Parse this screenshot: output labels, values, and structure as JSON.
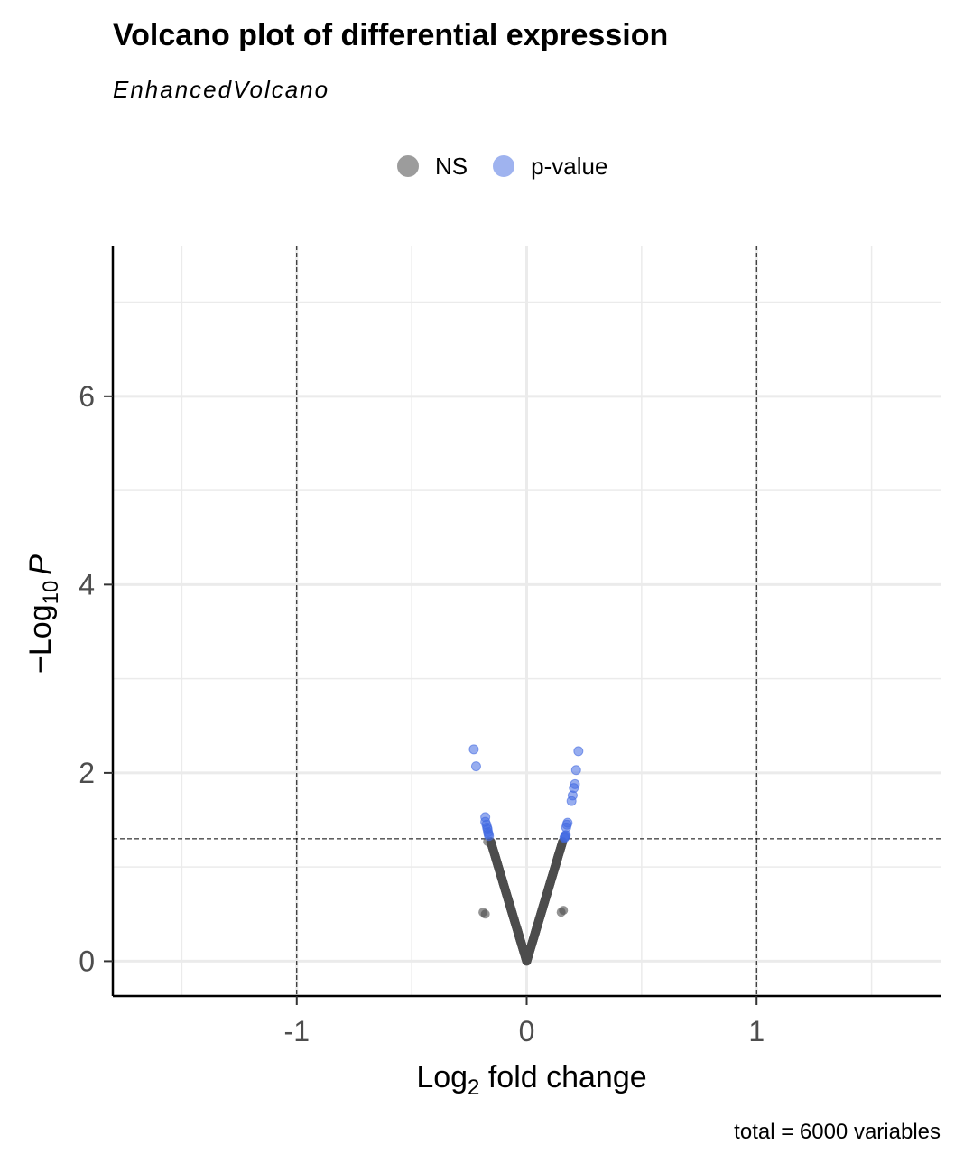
{
  "title": "Volcano plot of differential expression",
  "subtitle": "EnhancedVolcano",
  "caption": "total = 6000 variables",
  "legend": [
    {
      "label": "NS",
      "color": "#4d4d4d"
    },
    {
      "label": "p-value",
      "color": "#4169e1"
    }
  ],
  "axes": {
    "x_label_main": "Log",
    "x_label_sub": "2",
    "x_label_rest": " fold change",
    "y_label_prefix": "−Log",
    "y_label_sub": "10",
    "y_label_var": "P"
  },
  "chart_data": {
    "type": "scatter",
    "title": "Volcano plot of differential expression",
    "subtitle": "EnhancedVolcano",
    "xlabel": "Log2 fold change",
    "ylabel": "-Log10 P",
    "xlim": [
      -1.8,
      1.8
    ],
    "ylim": [
      -0.37,
      7.6
    ],
    "x_ticks": [
      -1,
      0,
      1
    ],
    "x_tick_labels": [
      "-1",
      "0",
      "1"
    ],
    "y_ticks": [
      0,
      2,
      4,
      6
    ],
    "y_tick_labels": [
      "0",
      "2",
      "4",
      "6"
    ],
    "grid": true,
    "legend_position": "top",
    "thresholds": {
      "fc_cutoff": [
        -1,
        1
      ],
      "p_cutoff_neglog10": 1.3
    },
    "series": [
      {
        "name": "NS",
        "color": "#4d4d4d",
        "v_shape": {
          "fold_change_at_neglog10p_1_3": 0.16,
          "points": 5977
        },
        "extra_points": [
          [
            -0.19,
            0.52
          ],
          [
            -0.18,
            0.5
          ],
          [
            0.16,
            0.54
          ],
          [
            0.15,
            0.52
          ],
          [
            -0.17,
            1.27
          ]
        ]
      },
      {
        "name": "p-value",
        "color": "#4169e1",
        "points": [
          [
            -0.23,
            2.25
          ],
          [
            -0.22,
            2.07
          ],
          [
            -0.18,
            1.53
          ],
          [
            -0.18,
            1.48
          ],
          [
            -0.175,
            1.45
          ],
          [
            -0.172,
            1.42
          ],
          [
            -0.17,
            1.4
          ],
          [
            -0.168,
            1.37
          ],
          [
            -0.166,
            1.35
          ],
          [
            -0.164,
            1.33
          ],
          [
            0.225,
            2.23
          ],
          [
            0.215,
            2.03
          ],
          [
            0.21,
            1.88
          ],
          [
            0.205,
            1.84
          ],
          [
            0.2,
            1.76
          ],
          [
            0.195,
            1.7
          ],
          [
            0.178,
            1.47
          ],
          [
            0.175,
            1.45
          ],
          [
            0.172,
            1.42
          ],
          [
            0.17,
            1.34
          ],
          [
            0.168,
            1.33
          ],
          [
            0.166,
            1.32
          ],
          [
            0.164,
            1.31
          ]
        ]
      }
    ]
  }
}
